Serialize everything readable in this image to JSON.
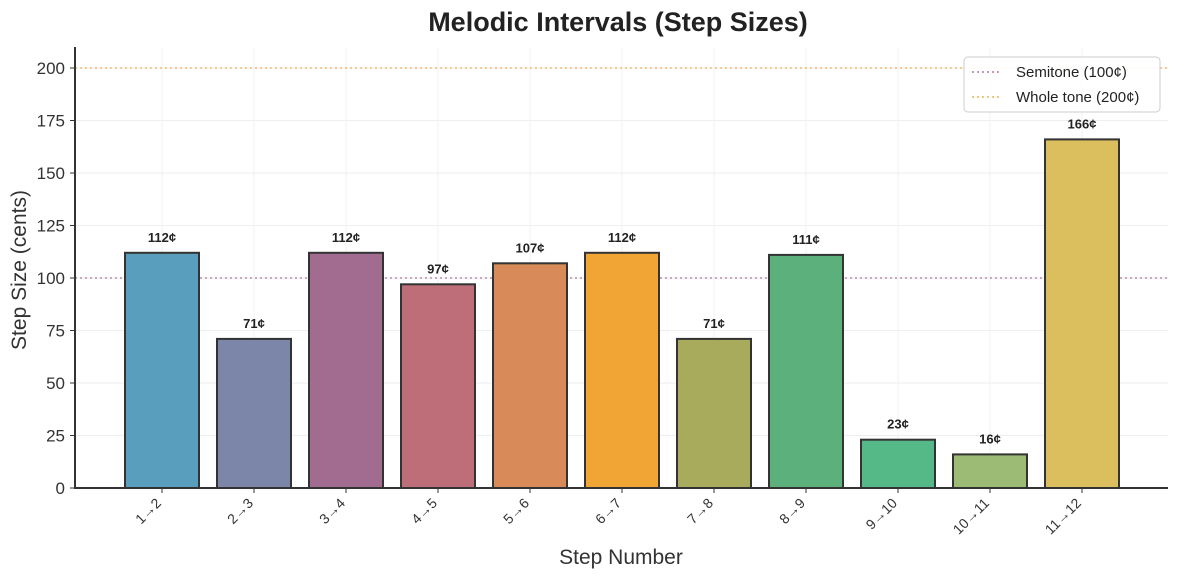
{
  "chart_data": {
    "type": "bar",
    "title": "Melodic Intervals (Step Sizes)",
    "xlabel": "Step Number",
    "ylabel": "Step Size (cents)",
    "ylim": [
      0,
      210
    ],
    "yticks": [
      0,
      25,
      50,
      75,
      100,
      125,
      150,
      175,
      200
    ],
    "categories": [
      "1→2",
      "2→3",
      "3→4",
      "4→5",
      "5→6",
      "6→7",
      "7→8",
      "8→9",
      "9→10",
      "10→11",
      "11→12"
    ],
    "values": [
      112,
      71,
      112,
      97,
      107,
      112,
      71,
      111,
      23,
      16,
      166
    ],
    "value_labels": [
      "112¢",
      "71¢",
      "112¢",
      "97¢",
      "107¢",
      "112¢",
      "71¢",
      "111¢",
      "23¢",
      "16¢",
      "166¢"
    ],
    "bar_colors": [
      "#5a9ebd",
      "#7b86a8",
      "#a26b90",
      "#bd6e78",
      "#d88a58",
      "#f0a535",
      "#a8ab5c",
      "#5cb07c",
      "#55b887",
      "#9cbb74",
      "#dbbf5f"
    ],
    "grid": true,
    "legend_position": "top-right",
    "reference_lines": [
      {
        "name": "Semitone (100¢)",
        "value": 100,
        "color": "#b07aa1"
      },
      {
        "name": "Whole tone (200¢)",
        "value": 200,
        "color": "#f0b050"
      }
    ]
  }
}
